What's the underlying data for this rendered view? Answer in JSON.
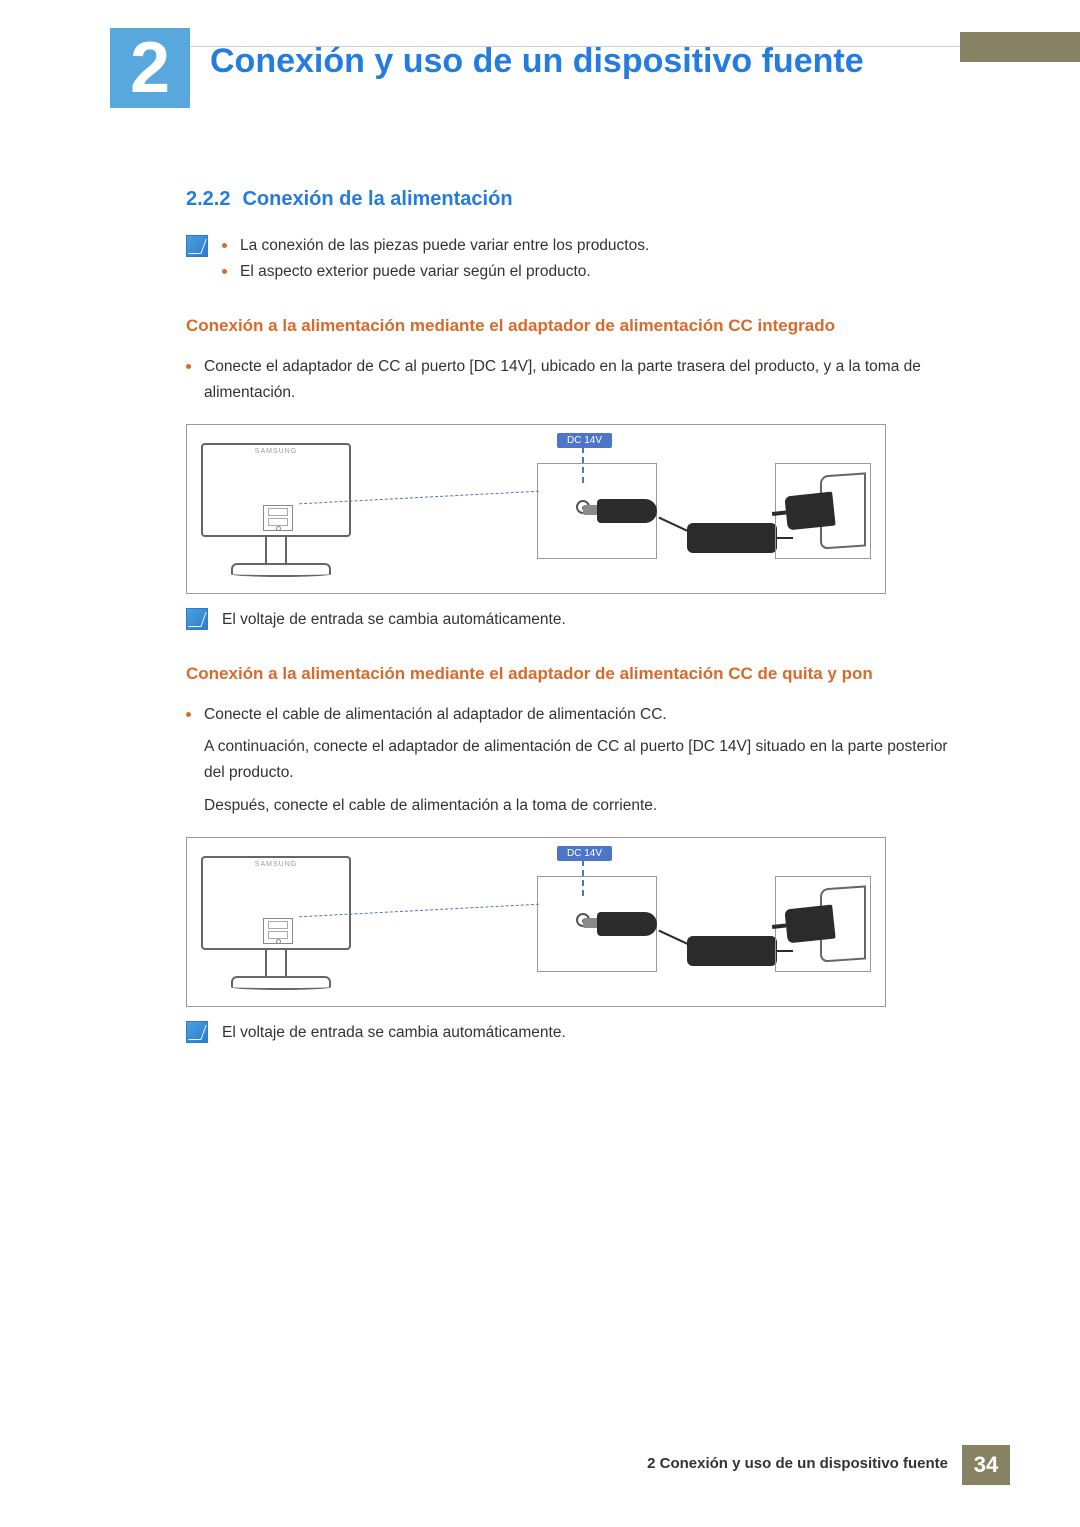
{
  "colors": {
    "accent_blue": "#247be0",
    "box_blue": "#58a7dd",
    "orange": "#d86a2b",
    "khaki": "#878264",
    "text": "#333333",
    "rule": "#d0d0d0",
    "dc_label_bg": "#4d76c9"
  },
  "chapter": {
    "number": "2",
    "title": "Conexión y uso de un dispositivo fuente"
  },
  "section": {
    "number": "2.2.2",
    "title": "Conexión de la alimentación"
  },
  "intro_notes": [
    "La conexión de las piezas puede variar entre los productos.",
    "El aspecto exterior puede variar según el producto."
  ],
  "block1": {
    "heading": "Conexión a la alimentación mediante el adaptador de alimentación CC integrado",
    "bullet": "Conecte el adaptador de CC al puerto [DC 14V], ubicado en la parte trasera del producto, y a la toma de alimentación.",
    "dc_label": "DC 14V",
    "note": "El voltaje de entrada se cambia automáticamente."
  },
  "block2": {
    "heading": "Conexión a la alimentación mediante el adaptador de alimentación CC de quita y pon",
    "bullet": "Conecte el cable de alimentación al adaptador de alimentación CC.",
    "para1": "A continuación, conecte el adaptador de alimentación de CC al puerto [DC 14V] situado en la parte posterior del producto.",
    "para2": "Después, conecte el cable de alimentación a la toma de corriente.",
    "dc_label": "DC 14V",
    "note": "El voltaje de entrada se cambia automáticamente."
  },
  "footer": {
    "text": "2 Conexión y uso de un dispositivo fuente",
    "page": "34"
  }
}
